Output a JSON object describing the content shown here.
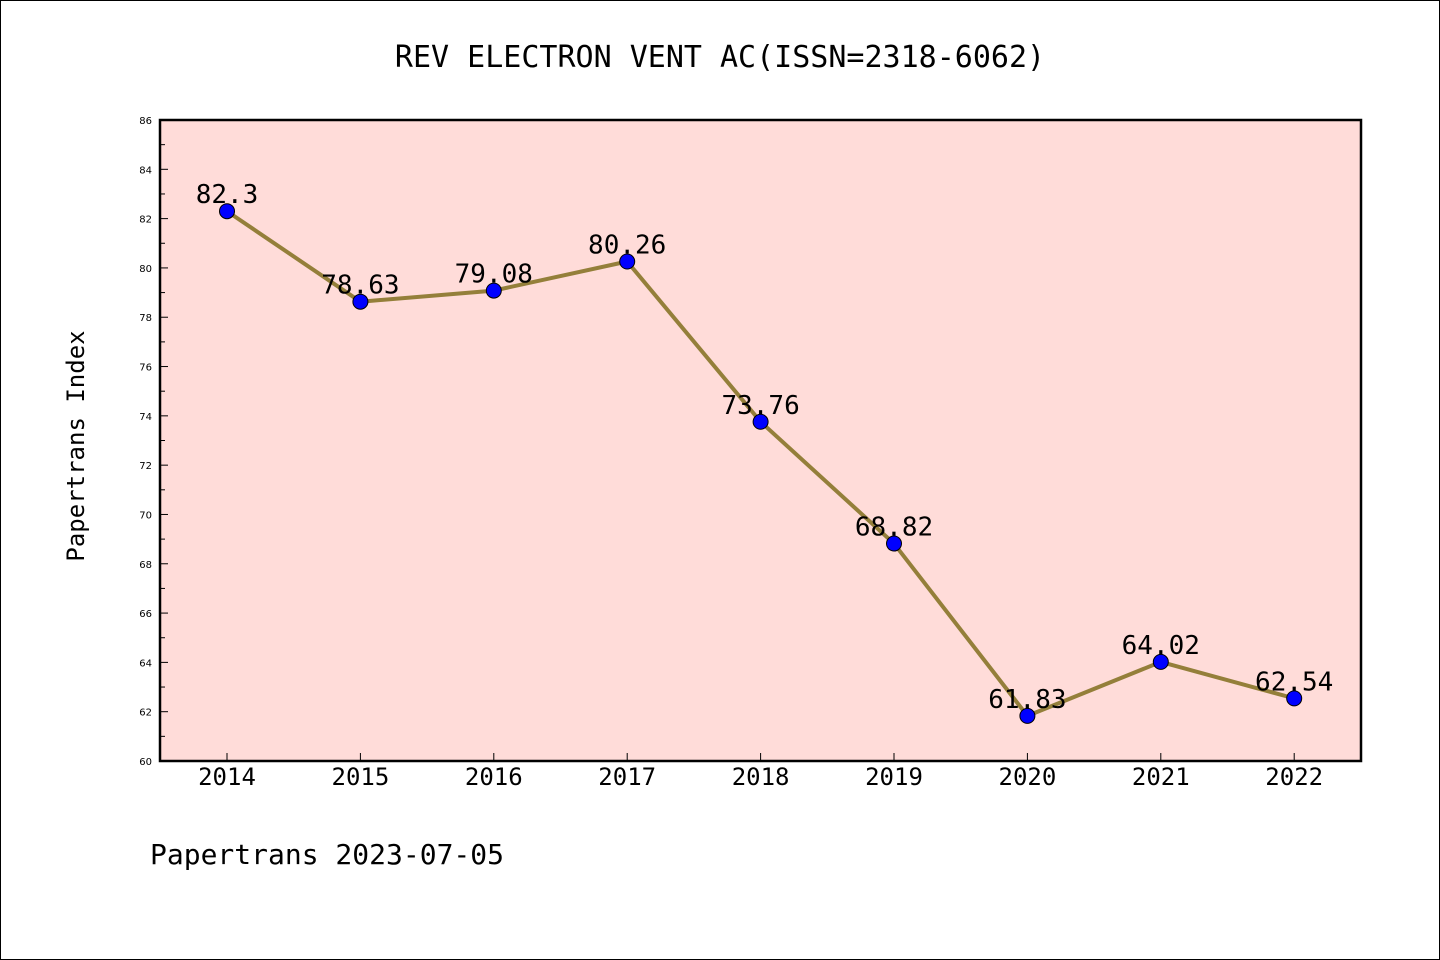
{
  "chart_data": {
    "type": "line",
    "title": "REV ELECTRON VENT AC(ISSN=2318-6062)",
    "xlabel": "",
    "ylabel": "Papertrans Index",
    "footer": "Papertrans 2023-07-05",
    "categories": [
      "2014",
      "2015",
      "2016",
      "2017",
      "2018",
      "2019",
      "2020",
      "2021",
      "2022"
    ],
    "series": [
      {
        "values": [
          82.3,
          78.63,
          79.08,
          80.26,
          73.76,
          68.82,
          61.83,
          64.02,
          62.54
        ],
        "labels": [
          "82.3",
          "78.63",
          "79.08",
          "80.26",
          "73.76",
          "68.82",
          "61.83",
          "64.02",
          "62.54"
        ]
      }
    ],
    "ylim": [
      60,
      86
    ],
    "yticks": [
      "60",
      "62",
      "64",
      "66",
      "68",
      "70",
      "72",
      "74",
      "76",
      "78",
      "80",
      "82",
      "84",
      "86"
    ],
    "grid": false,
    "colors": {
      "plot_background": "#ffdcd9",
      "line": "#947f3a",
      "marker": "#0000ff",
      "axis": "#000000"
    }
  }
}
